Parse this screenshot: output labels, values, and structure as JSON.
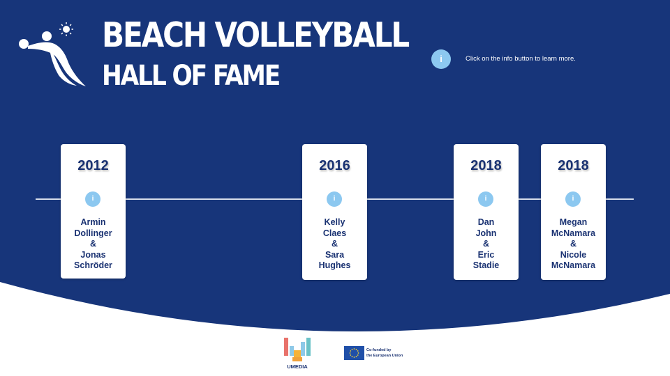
{
  "header": {
    "title_line1": "BEACH VOLLEYBALL",
    "title_line2": "HALL OF FAME",
    "hint": "Click on the info button to learn more.",
    "info_icon": "i"
  },
  "timeline": {
    "cards": [
      {
        "year": "2012",
        "info": "i",
        "names": [
          "Armin",
          "Dollinger",
          "&",
          "Jonas",
          "Schröder"
        ]
      },
      {
        "year": "2016",
        "info": "i",
        "names": [
          "Kelly",
          "Claes",
          "&",
          "Sara",
          "Hughes"
        ]
      },
      {
        "year": "2018",
        "info": "i",
        "names": [
          "Dan",
          "John",
          "&",
          "Eric",
          "Stadie"
        ]
      },
      {
        "year": "2018",
        "info": "i",
        "names": [
          "Megan",
          "McNamara",
          "&",
          "Nicole",
          "McNamara"
        ]
      }
    ]
  },
  "footer": {
    "umedia_label": "UMEDIA",
    "eu_line1": "Co-funded by",
    "eu_line2": "the European Union"
  },
  "colors": {
    "navy": "#17357a",
    "info_blue": "#8cc8f0",
    "text_navy": "#1a3272"
  },
  "icons": {
    "logo": "volleyball-player-icon",
    "info": "info-icon",
    "partner_logo": "umedia-logo",
    "flag": "eu-flag-icon"
  }
}
